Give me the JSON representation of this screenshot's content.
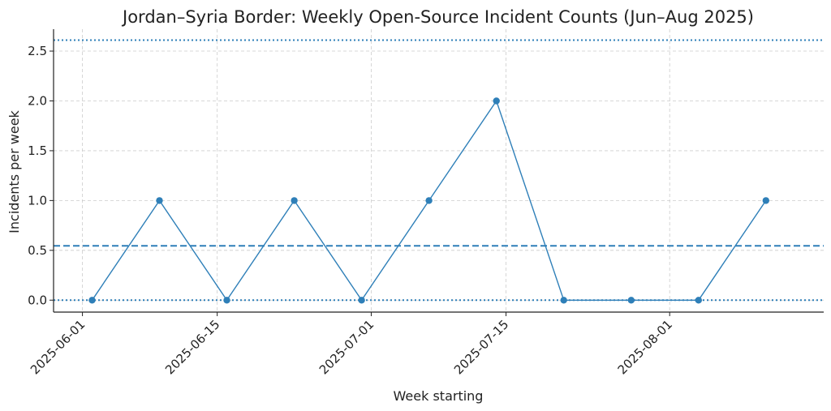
{
  "chart_data": {
    "type": "line",
    "title": "Jordan–Syria Border: Weekly Open-Source Incident Counts (Jun–Aug 2025)",
    "xlabel": "Week starting",
    "ylabel": "Incidents per week",
    "x": [
      "2025-06-02",
      "2025-06-09",
      "2025-06-16",
      "2025-06-23",
      "2025-06-30",
      "2025-07-07",
      "2025-07-14",
      "2025-07-21",
      "2025-07-28",
      "2025-08-04",
      "2025-08-11"
    ],
    "series": [
      {
        "values": [
          0,
          1,
          0,
          1,
          0,
          1,
          2,
          0,
          0,
          0,
          1
        ]
      }
    ],
    "x_ticks": [
      "2025-06-01",
      "2025-06-15",
      "2025-07-01",
      "2025-07-15",
      "2025-08-01"
    ],
    "y_ticks": [
      "0.0",
      "0.5",
      "1.0",
      "1.5",
      "2.0",
      "2.5"
    ],
    "xlim": [
      "2025-05-29",
      "2025-08-17"
    ],
    "ylim": [
      -0.12,
      2.72
    ],
    "reference_lines": [
      {
        "style": "dashed",
        "value": 0.545
      },
      {
        "style": "dotted",
        "value": 2.61
      },
      {
        "style": "dotted",
        "value": 0.0
      }
    ],
    "grid": true,
    "legend": "none",
    "colors": {
      "series": "#2e7fb8",
      "grid": "#cccccc",
      "axis": "#222222"
    }
  }
}
